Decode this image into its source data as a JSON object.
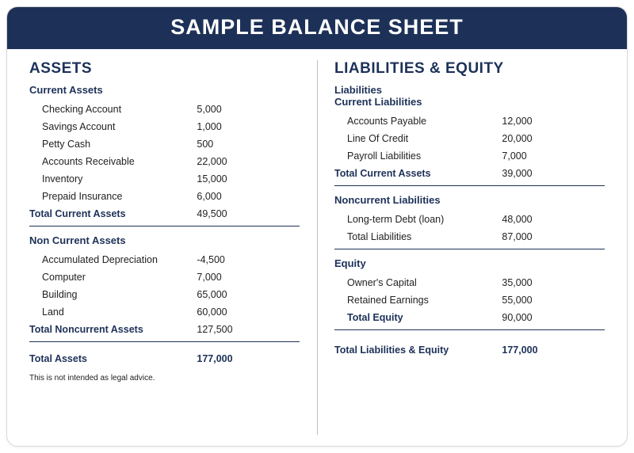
{
  "colors": {
    "header_bg": "#1d3158",
    "header_text": "#ffffff",
    "accent": "#1d3158",
    "text": "#222222",
    "border": "#d8d8d8",
    "divider": "#bfbfbf"
  },
  "title": "SAMPLE BALANCE SHEET",
  "left": {
    "heading": "ASSETS",
    "current": {
      "heading": "Current Assets",
      "items": [
        {
          "label": "Checking Account",
          "value": "5,000"
        },
        {
          "label": "Savings Account",
          "value": "1,000"
        },
        {
          "label": "Petty Cash",
          "value": "500"
        },
        {
          "label": "Accounts Receivable",
          "value": "22,000"
        },
        {
          "label": "Inventory",
          "value": "15,000"
        },
        {
          "label": "Prepaid Insurance",
          "value": "6,000"
        }
      ],
      "total_label": "Total Current Assets",
      "total_value": "49,500"
    },
    "noncurrent": {
      "heading": "Non Current Assets",
      "items": [
        {
          "label": "Accumulated Depreciation",
          "value": "-4,500"
        },
        {
          "label": "Computer",
          "value": "7,000"
        },
        {
          "label": "Building",
          "value": "65,000"
        },
        {
          "label": "Land",
          "value": "60,000"
        }
      ],
      "total_label": "Total Noncurrent Assets",
      "total_value": "127,500"
    },
    "grand_total_label": "Total Assets",
    "grand_total_value": "177,000",
    "footnote": "This is not intended as legal advice."
  },
  "right": {
    "heading": "LIABILITIES & EQUITY",
    "liabilities_heading": "Liabilities",
    "current": {
      "heading": "Current Liabilities",
      "items": [
        {
          "label": "Accounts Payable",
          "value": "12,000"
        },
        {
          "label": "Line Of Credit",
          "value": "20,000"
        },
        {
          "label": "Payroll Liabilities",
          "value": "7,000"
        }
      ],
      "total_label": "Total Current Assets",
      "total_value": "39,000"
    },
    "noncurrent": {
      "heading": "Noncurrent Liabilities",
      "items": [
        {
          "label": "Long-term Debt (loan)",
          "value": "48,000"
        },
        {
          "label": "Total Liabilities",
          "value": "87,000"
        }
      ]
    },
    "equity": {
      "heading": "Equity",
      "items": [
        {
          "label": "Owner's Capital",
          "value": "35,000"
        },
        {
          "label": "Retained Earnings",
          "value": "55,000"
        }
      ],
      "total_label": "Total Equity",
      "total_value": "90,000"
    },
    "grand_total_label": "Total Liabilities & Equity",
    "grand_total_value": "177,000"
  }
}
